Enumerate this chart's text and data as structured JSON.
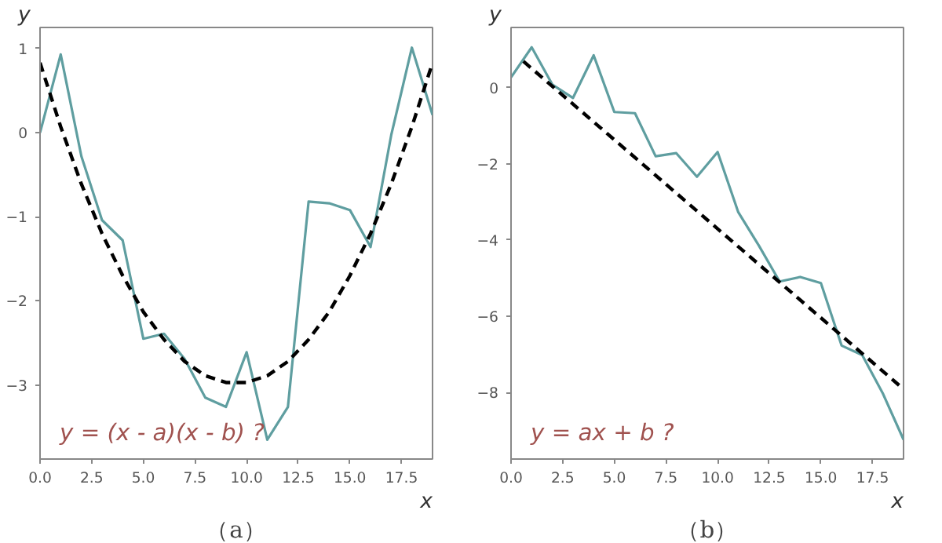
{
  "chart_data": [
    {
      "type": "line",
      "xlabel": "x",
      "ylabel": "y",
      "x": [
        0,
        1,
        2,
        3,
        4,
        5,
        6,
        7,
        8,
        9,
        10,
        11,
        12,
        13,
        14,
        15,
        16,
        17,
        18,
        19
      ],
      "series": [
        {
          "color": "#5f9ea0",
          "line_style": "solid",
          "values": [
            0,
            0.93,
            -0.28,
            -1.04,
            -1.28,
            -2.45,
            -2.39,
            -2.69,
            -3.15,
            -3.26,
            -2.61,
            -3.65,
            -3.26,
            -0.82,
            -0.84,
            -0.92,
            -1.36,
            -0.03,
            1.01,
            0.21
          ]
        },
        {
          "color": "#000000",
          "line_style": "dashed",
          "values": [
            0.83,
            0.07,
            -0.61,
            -1.2,
            -1.7,
            -2.13,
            -2.46,
            -2.72,
            -2.89,
            -2.97,
            -2.97,
            -2.89,
            -2.72,
            -2.46,
            -2.13,
            -1.7,
            -1.2,
            -0.61,
            0.07,
            0.83
          ]
        }
      ],
      "xlim": [
        0,
        19
      ],
      "ylim": [
        -3.88,
        1.25
      ],
      "xticks": [
        {
          "value": 0,
          "label": "0.0"
        },
        {
          "value": 2.5,
          "label": "2.5"
        },
        {
          "value": 5,
          "label": "5.0"
        },
        {
          "value": 7.5,
          "label": "7.5"
        },
        {
          "value": 10,
          "label": "10.0"
        },
        {
          "value": 12.5,
          "label": "12.5"
        },
        {
          "value": 15,
          "label": "15.0"
        },
        {
          "value": 17.5,
          "label": "17.5"
        }
      ],
      "yticks": [
        -3,
        -2,
        -1,
        0,
        1
      ],
      "grid": false,
      "annotations": [
        "y = (x - a)(x - b) ?",
        "（a）"
      ]
    },
    {
      "type": "line",
      "xlabel": "x",
      "ylabel": "y",
      "x": [
        0,
        1,
        2,
        3,
        4,
        5,
        6,
        7,
        8,
        9,
        10,
        11,
        12,
        13,
        14,
        15,
        16,
        17,
        18,
        19
      ],
      "series": [
        {
          "color": "#5f9ea0",
          "line_style": "solid",
          "values": [
            0.27,
            1.06,
            0.08,
            -0.27,
            0.85,
            -0.64,
            -0.67,
            -1.8,
            -1.72,
            -2.34,
            -1.69,
            -3.27,
            -4.15,
            -5.09,
            -4.97,
            -5.13,
            -6.77,
            -7.02,
            -8.03,
            -9.24
          ]
        },
        {
          "color": "#000000",
          "line_style": "dashed",
          "x": [
            0.6,
            18.8
          ],
          "values": [
            0.69,
            -7.82
          ]
        }
      ],
      "xlim": [
        0,
        19
      ],
      "ylim": [
        -9.75,
        1.58
      ],
      "xticks": [
        {
          "value": 0,
          "label": "0.0"
        },
        {
          "value": 2.5,
          "label": "2.5"
        },
        {
          "value": 5,
          "label": "5.0"
        },
        {
          "value": 7.5,
          "label": "7.5"
        },
        {
          "value": 10,
          "label": "10.0"
        },
        {
          "value": 12.5,
          "label": "12.5"
        },
        {
          "value": 15,
          "label": "15.0"
        },
        {
          "value": 17.5,
          "label": "17.5"
        }
      ],
      "yticks": [
        -8,
        -6,
        -4,
        -2,
        0
      ],
      "grid": false,
      "annotations": [
        "y = ax + b ?",
        "（b）"
      ]
    }
  ]
}
